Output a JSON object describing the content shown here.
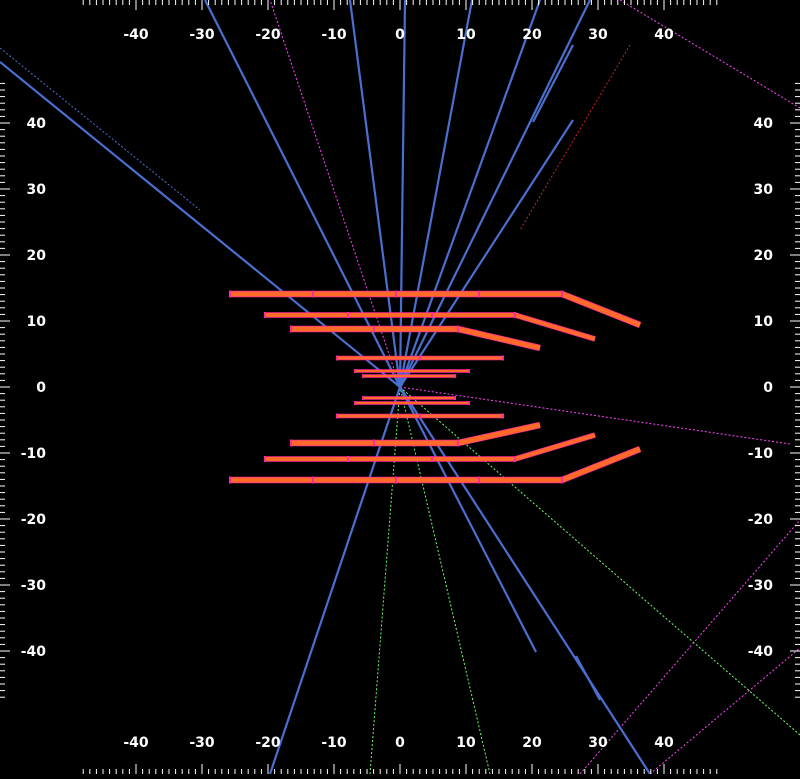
{
  "viewer": {
    "background": "#000000",
    "tick_color": "#ffffff",
    "x_tick_labels": [
      "-40",
      "-30",
      "-20",
      "-10",
      "0",
      "10",
      "20",
      "30",
      "40"
    ],
    "y_tick_labels": [
      "40",
      "30",
      "20",
      "10",
      "0",
      "-10",
      "-20",
      "-30",
      "-40"
    ],
    "detector_color": "#ff6a28",
    "detector_edge_color": "#ff2a9a",
    "track_color": "#4a6fd0",
    "dotted_colors": {
      "magenta": "#ff44ff",
      "green": "#66ff66",
      "red": "#cc2222",
      "blue": "#4a6fd0"
    }
  }
}
